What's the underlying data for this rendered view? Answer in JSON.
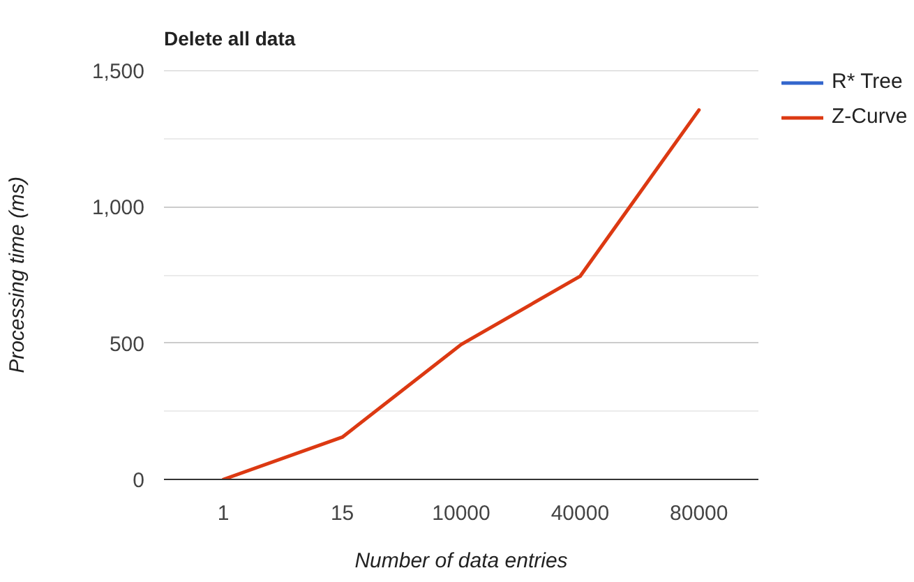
{
  "chart_data": {
    "type": "line",
    "title": "Delete all data",
    "xlabel": "Number of data entries",
    "ylabel": "Processing time (ms)",
    "categories": [
      "1",
      "15",
      "10000",
      "40000",
      "80000"
    ],
    "series": [
      {
        "name": "R* Tree",
        "color": "#3366cc",
        "values": [
          null,
          null,
          null,
          null,
          null
        ]
      },
      {
        "name": "Z-Curve",
        "color": "#dc3912",
        "values": [
          0,
          155,
          495,
          745,
          1355
        ]
      }
    ],
    "ylim": [
      0,
      1500
    ],
    "yticks": [
      0,
      {
        "value": 250,
        "label": null
      },
      500,
      {
        "value": 750,
        "label": null
      },
      {
        "value": 1000,
        "label": "1,000"
      },
      {
        "value": 1250,
        "label": null
      },
      {
        "value": 1500,
        "label": "1,500"
      }
    ],
    "grid": "y",
    "legend": "right",
    "marker": "none",
    "line_style": "solid"
  }
}
